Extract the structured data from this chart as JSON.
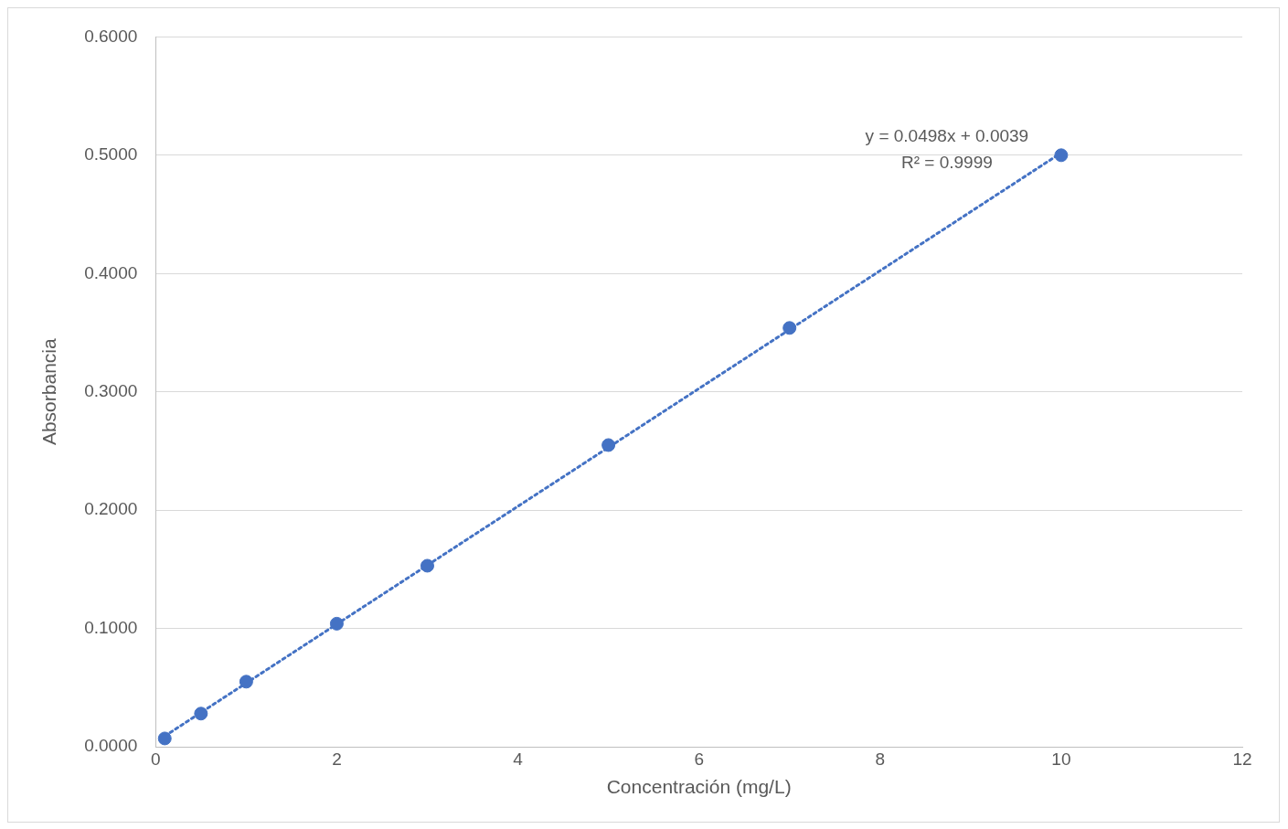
{
  "chart_data": {
    "type": "scatter",
    "xlabel": "Concentración (mg/L)",
    "ylabel": "Absorbancia",
    "xlim": [
      0,
      12
    ],
    "xticks": [
      0,
      2,
      4,
      6,
      8,
      10,
      12
    ],
    "ylim": [
      0,
      0.6
    ],
    "yticks": [
      {
        "value": 0,
        "label": "0.0000"
      },
      {
        "value": 0.1,
        "label": "0.1000"
      },
      {
        "value": 0.2,
        "label": "0.2000"
      },
      {
        "value": 0.3,
        "label": "0.3000"
      },
      {
        "value": 0.4,
        "label": "0.4000"
      },
      {
        "value": 0.5,
        "label": "0.5000"
      },
      {
        "value": 0.6,
        "label": "0.6000"
      }
    ],
    "grid": "y",
    "legend": false,
    "marker": "circle",
    "series": [
      {
        "color": "#4472c4",
        "x": [
          0.1,
          0.5,
          1,
          2,
          3,
          5,
          7,
          10
        ],
        "values": [
          0.007,
          0.028,
          0.055,
          0.104,
          0.153,
          0.255,
          0.354,
          0.5
        ]
      },
      {
        "type": "line",
        "color": "#4472c4",
        "line_style": "dotted",
        "marker": "none",
        "x": [
          0.1,
          10
        ],
        "values": [
          0.009,
          0.502
        ]
      }
    ],
    "annotations": [
      "y = 0.0498x + 0.0039",
      "R² = 0.9999"
    ]
  }
}
